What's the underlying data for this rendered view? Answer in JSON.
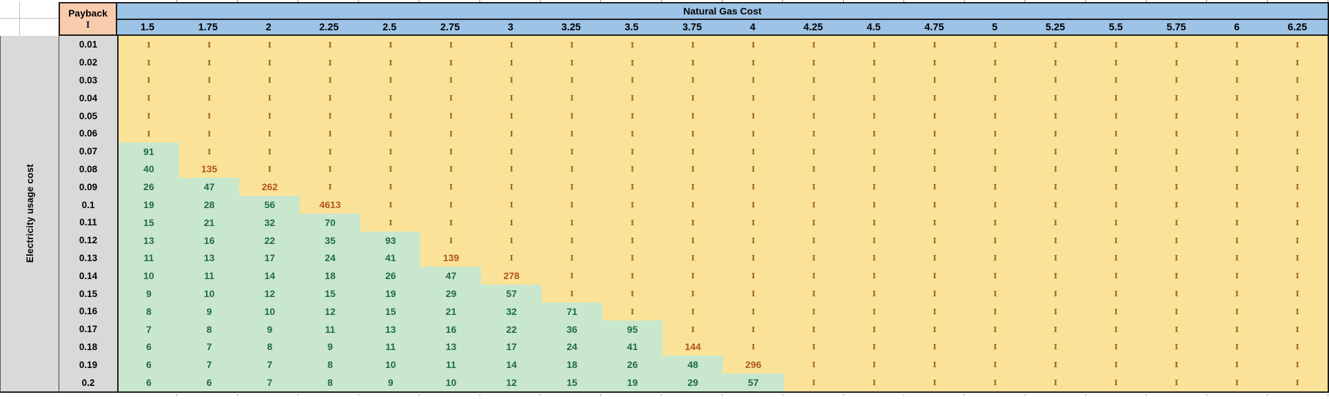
{
  "table": {
    "corner_header": {
      "title": "Payback",
      "subtitle": "I"
    },
    "col_group_header": "Natural Gas Cost",
    "row_group_header": "Electricity usage cost",
    "columns": [
      "1.5",
      "1.75",
      "2",
      "2.25",
      "2.5",
      "2.75",
      "3",
      "3.25",
      "3.5",
      "3.75",
      "4",
      "4.25",
      "4.5",
      "4.75",
      "5",
      "5.25",
      "5.5",
      "5.75",
      "6",
      "6.25"
    ],
    "infinity_symbol": "I",
    "rows": [
      {
        "label": "0.01",
        "values": [
          "I",
          "I",
          "I",
          "I",
          "I",
          "I",
          "I",
          "I",
          "I",
          "I",
          "I",
          "I",
          "I",
          "I",
          "I",
          "I",
          "I",
          "I",
          "I",
          "I"
        ]
      },
      {
        "label": "0.02",
        "values": [
          "I",
          "I",
          "I",
          "I",
          "I",
          "I",
          "I",
          "I",
          "I",
          "I",
          "I",
          "I",
          "I",
          "I",
          "I",
          "I",
          "I",
          "I",
          "I",
          "I"
        ]
      },
      {
        "label": "0.03",
        "values": [
          "I",
          "I",
          "I",
          "I",
          "I",
          "I",
          "I",
          "I",
          "I",
          "I",
          "I",
          "I",
          "I",
          "I",
          "I",
          "I",
          "I",
          "I",
          "I",
          "I"
        ]
      },
      {
        "label": "0.04",
        "values": [
          "I",
          "I",
          "I",
          "I",
          "I",
          "I",
          "I",
          "I",
          "I",
          "I",
          "I",
          "I",
          "I",
          "I",
          "I",
          "I",
          "I",
          "I",
          "I",
          "I"
        ]
      },
      {
        "label": "0.05",
        "values": [
          "I",
          "I",
          "I",
          "I",
          "I",
          "I",
          "I",
          "I",
          "I",
          "I",
          "I",
          "I",
          "I",
          "I",
          "I",
          "I",
          "I",
          "I",
          "I",
          "I"
        ]
      },
      {
        "label": "0.06",
        "values": [
          "I",
          "I",
          "I",
          "I",
          "I",
          "I",
          "I",
          "I",
          "I",
          "I",
          "I",
          "I",
          "I",
          "I",
          "I",
          "I",
          "I",
          "I",
          "I",
          "I"
        ]
      },
      {
        "label": "0.07",
        "values": [
          "91",
          "I",
          "I",
          "I",
          "I",
          "I",
          "I",
          "I",
          "I",
          "I",
          "I",
          "I",
          "I",
          "I",
          "I",
          "I",
          "I",
          "I",
          "I",
          "I"
        ]
      },
      {
        "label": "0.08",
        "values": [
          "40",
          "135",
          "I",
          "I",
          "I",
          "I",
          "I",
          "I",
          "I",
          "I",
          "I",
          "I",
          "I",
          "I",
          "I",
          "I",
          "I",
          "I",
          "I",
          "I"
        ]
      },
      {
        "label": "0.09",
        "values": [
          "26",
          "47",
          "262",
          "I",
          "I",
          "I",
          "I",
          "I",
          "I",
          "I",
          "I",
          "I",
          "I",
          "I",
          "I",
          "I",
          "I",
          "I",
          "I",
          "I"
        ]
      },
      {
        "label": "0.1",
        "values": [
          "19",
          "28",
          "56",
          "4613",
          "I",
          "I",
          "I",
          "I",
          "I",
          "I",
          "I",
          "I",
          "I",
          "I",
          "I",
          "I",
          "I",
          "I",
          "I",
          "I"
        ]
      },
      {
        "label": "0.11",
        "values": [
          "15",
          "21",
          "32",
          "70",
          "I",
          "I",
          "I",
          "I",
          "I",
          "I",
          "I",
          "I",
          "I",
          "I",
          "I",
          "I",
          "I",
          "I",
          "I",
          "I"
        ]
      },
      {
        "label": "0.12",
        "values": [
          "13",
          "16",
          "22",
          "35",
          "93",
          "I",
          "I",
          "I",
          "I",
          "I",
          "I",
          "I",
          "I",
          "I",
          "I",
          "I",
          "I",
          "I",
          "I",
          "I"
        ]
      },
      {
        "label": "0.13",
        "values": [
          "11",
          "13",
          "17",
          "24",
          "41",
          "139",
          "I",
          "I",
          "I",
          "I",
          "I",
          "I",
          "I",
          "I",
          "I",
          "I",
          "I",
          "I",
          "I",
          "I"
        ]
      },
      {
        "label": "0.14",
        "values": [
          "10",
          "11",
          "14",
          "18",
          "26",
          "47",
          "278",
          "I",
          "I",
          "I",
          "I",
          "I",
          "I",
          "I",
          "I",
          "I",
          "I",
          "I",
          "I",
          "I"
        ]
      },
      {
        "label": "0.15",
        "values": [
          "9",
          "10",
          "12",
          "15",
          "19",
          "29",
          "57",
          "I",
          "I",
          "I",
          "I",
          "I",
          "I",
          "I",
          "I",
          "I",
          "I",
          "I",
          "I",
          "I"
        ]
      },
      {
        "label": "0.16",
        "values": [
          "8",
          "9",
          "10",
          "12",
          "15",
          "21",
          "32",
          "71",
          "I",
          "I",
          "I",
          "I",
          "I",
          "I",
          "I",
          "I",
          "I",
          "I",
          "I",
          "I"
        ]
      },
      {
        "label": "0.17",
        "values": [
          "7",
          "8",
          "9",
          "11",
          "13",
          "16",
          "22",
          "36",
          "95",
          "I",
          "I",
          "I",
          "I",
          "I",
          "I",
          "I",
          "I",
          "I",
          "I",
          "I"
        ]
      },
      {
        "label": "0.18",
        "values": [
          "6",
          "7",
          "8",
          "9",
          "11",
          "13",
          "17",
          "24",
          "41",
          "144",
          "I",
          "I",
          "I",
          "I",
          "I",
          "I",
          "I",
          "I",
          "I",
          "I"
        ]
      },
      {
        "label": "0.19",
        "values": [
          "6",
          "7",
          "7",
          "8",
          "10",
          "11",
          "14",
          "18",
          "26",
          "48",
          "296",
          "I",
          "I",
          "I",
          "I",
          "I",
          "I",
          "I",
          "I",
          "I"
        ]
      },
      {
        "label": "0.2",
        "values": [
          "6",
          "6",
          "7",
          "8",
          "9",
          "10",
          "12",
          "15",
          "19",
          "29",
          "57",
          "I",
          "I",
          "I",
          "I",
          "I",
          "I",
          "I",
          "I",
          "I"
        ]
      }
    ]
  },
  "colors": {
    "header_blue": "#9dc3e6",
    "corner_peach": "#f8cbad",
    "label_gray": "#d9d9d9",
    "inf_bg": "#fae399",
    "good_bg": "#c9e7cd",
    "good_text": "#1f6b40",
    "limit_text": "#b05518",
    "inf_text": "#9c6a14",
    "border_black": "#1a1a1a"
  }
}
